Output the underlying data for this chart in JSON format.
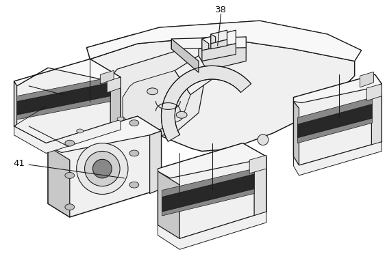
{
  "background_color": "#ffffff",
  "figsize": [
    5.65,
    3.72
  ],
  "dpi": 100,
  "line_color": "#1a1a1a",
  "fill_light": "#f0f0f0",
  "fill_mid": "#e0e0e0",
  "fill_dark": "#c8c8c8",
  "fill_very_dark": "#a0a0a0",
  "lw": 0.9,
  "lw_thick": 1.1
}
